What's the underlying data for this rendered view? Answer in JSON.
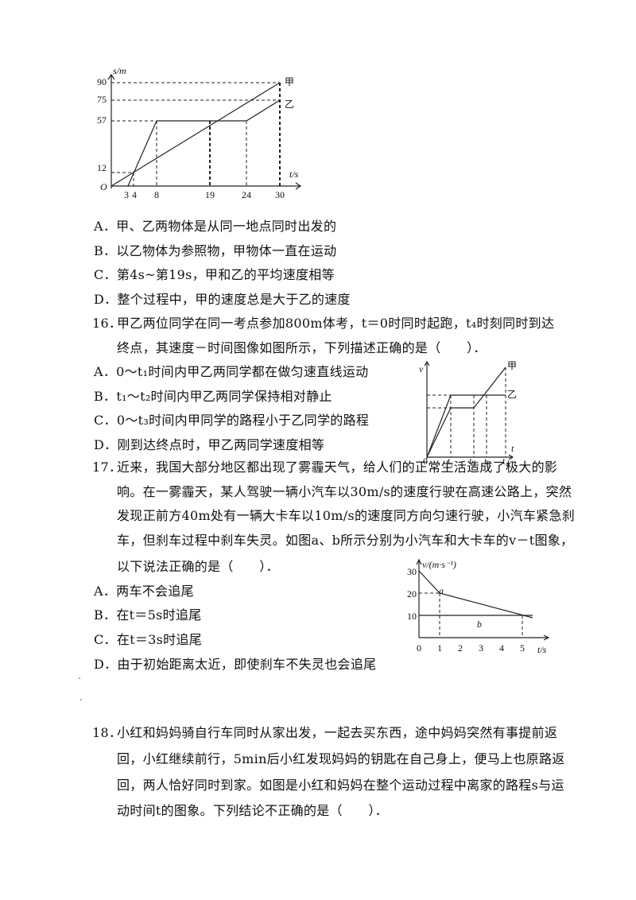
{
  "figure1": {
    "y_label": "s/m",
    "x_label": "t/s",
    "origin": "O",
    "y_ticks": [
      "90",
      "75",
      "57",
      "12"
    ],
    "x_ticks": [
      "3",
      "4",
      "8",
      "19",
      "24",
      "30"
    ],
    "line_labels": [
      "甲",
      "乙"
    ]
  },
  "q15": {
    "options": [
      "A．甲、乙两物体是从同一地点同时出发的",
      "B．以乙物体为参照物，甲物体一直在运动",
      "C．第4s~第19s，甲和乙的平均速度相等",
      "D．整个过程中，甲的速度总是大于乙的速度"
    ]
  },
  "q16": {
    "number": "16．",
    "stem_lines": [
      "甲乙两位同学在同一考点参加800m体考，t＝0时同时起跑，t₄时刻同时到达",
      "终点，其速度－时间图像如图所示，下列描述正确的是（　　）．"
    ],
    "options": [
      "A．0～t₁时间内甲乙两同学都在做匀速直线运动",
      "B．t₁～t₂时间内甲乙两同学保持相对静止",
      "C．0～t₃时间内甲同学的路程小于乙同学的路程",
      "D．刚到达终点时，甲乙两同学速度相等"
    ],
    "figure": {
      "y_label": "v",
      "x_label": "t",
      "origin": "0",
      "x_ticks": [
        "t₁",
        "t₂",
        "t₃",
        "t₄"
      ],
      "line_labels": [
        "甲",
        "乙"
      ]
    }
  },
  "q17": {
    "number": "17．",
    "stem_lines": [
      "近来，我国大部分地区都出现了雾霾天气，给人们的正常生活造成了极大的影",
      "响。在一雾霾天，某人驾驶一辆小汽车以30m/s的速度行驶在高速公路上，突然",
      "发现正前方40m处有一辆大卡车以10m/s的速度同方向匀速行驶，小汽车紧急刹",
      "车，但刹车过程中刹车失灵。如图a、b所示分别为小汽车和大卡车的v－t图象，",
      "以下说法正确的是（　　）．"
    ],
    "options": [
      "A．两车不会追尾",
      "B．在t＝5s时追尾",
      "C．在t＝3s时追尾",
      "D．由于初始距离太近，即使刹车不失灵也会追尾"
    ],
    "figure": {
      "y_label": "v/(m·s⁻¹)",
      "x_label": "t/s",
      "y_ticks": [
        "30",
        "20",
        "10"
      ],
      "x_ticks": [
        "0",
        "1",
        "2",
        "3",
        "4",
        "5"
      ],
      "line_labels": [
        "a",
        "b"
      ]
    }
  },
  "q18": {
    "number": "18．",
    "stem_lines": [
      "小红和妈妈骑自行车同时从家出发，一起去买东西，途中妈妈突然有事提前返",
      "回，小红继续前行，5min后小红发现妈妈的钥匙在自己身上，便马上也原路返",
      "回，两人恰好同时到家。如图是小红和妈妈在整个运动过程中离家的路程s与运",
      "动时间t的图象。下列结论不正确的是（　　）．"
    ]
  }
}
